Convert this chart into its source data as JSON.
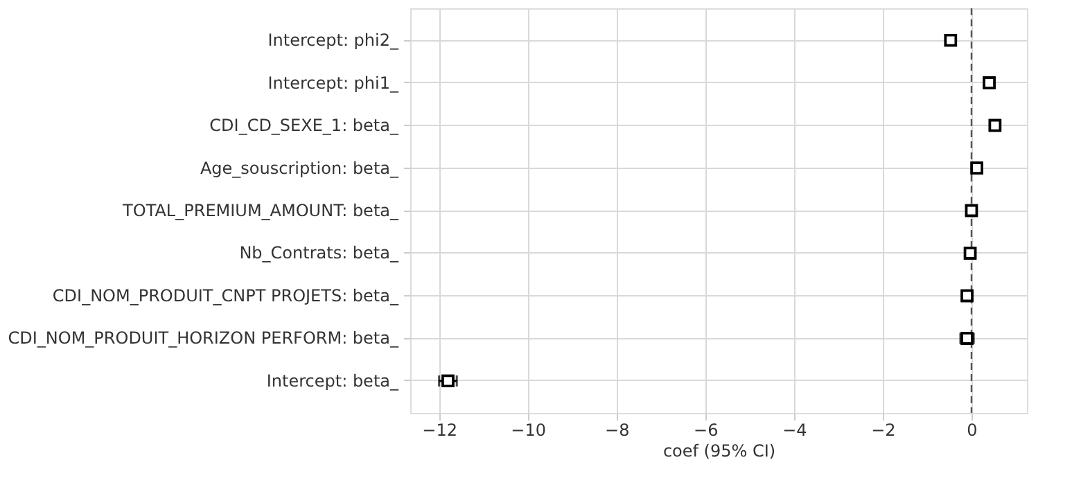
{
  "chart_data": {
    "type": "scatter",
    "orientation": "horizontal",
    "categories": [
      "Intercept: phi2_",
      "Intercept: phi1_",
      "CDI_CD_SEXE_1: beta_",
      "Age_souscription: beta_",
      "TOTAL_PREMIUM_AMOUNT: beta_",
      "Nb_Contrats: beta_",
      "CDI_NOM_PRODUIT_CNPT PROJETS: beta_",
      "CDI_NOM_PRODUIT_HORIZON PERFORM: beta_",
      "Intercept: beta_"
    ],
    "color": "#000000",
    "values": [
      -0.47,
      0.4,
      0.53,
      0.12,
      0.0,
      -0.03,
      -0.1,
      -0.1,
      -11.8
    ],
    "errors": [
      null,
      null,
      null,
      null,
      null,
      null,
      null,
      0.15,
      0.2
    ],
    "xlabel": "coef (95% CI)",
    "xlim": [
      -12.65,
      1.25
    ],
    "xticks": [
      -12,
      -10,
      -8,
      -6,
      -4,
      -2,
      0
    ],
    "ref_lines": [
      {
        "axis": "x",
        "value": 0,
        "line_style": "dashed",
        "color": "#555555"
      }
    ],
    "marker": "square",
    "grid": true
  }
}
